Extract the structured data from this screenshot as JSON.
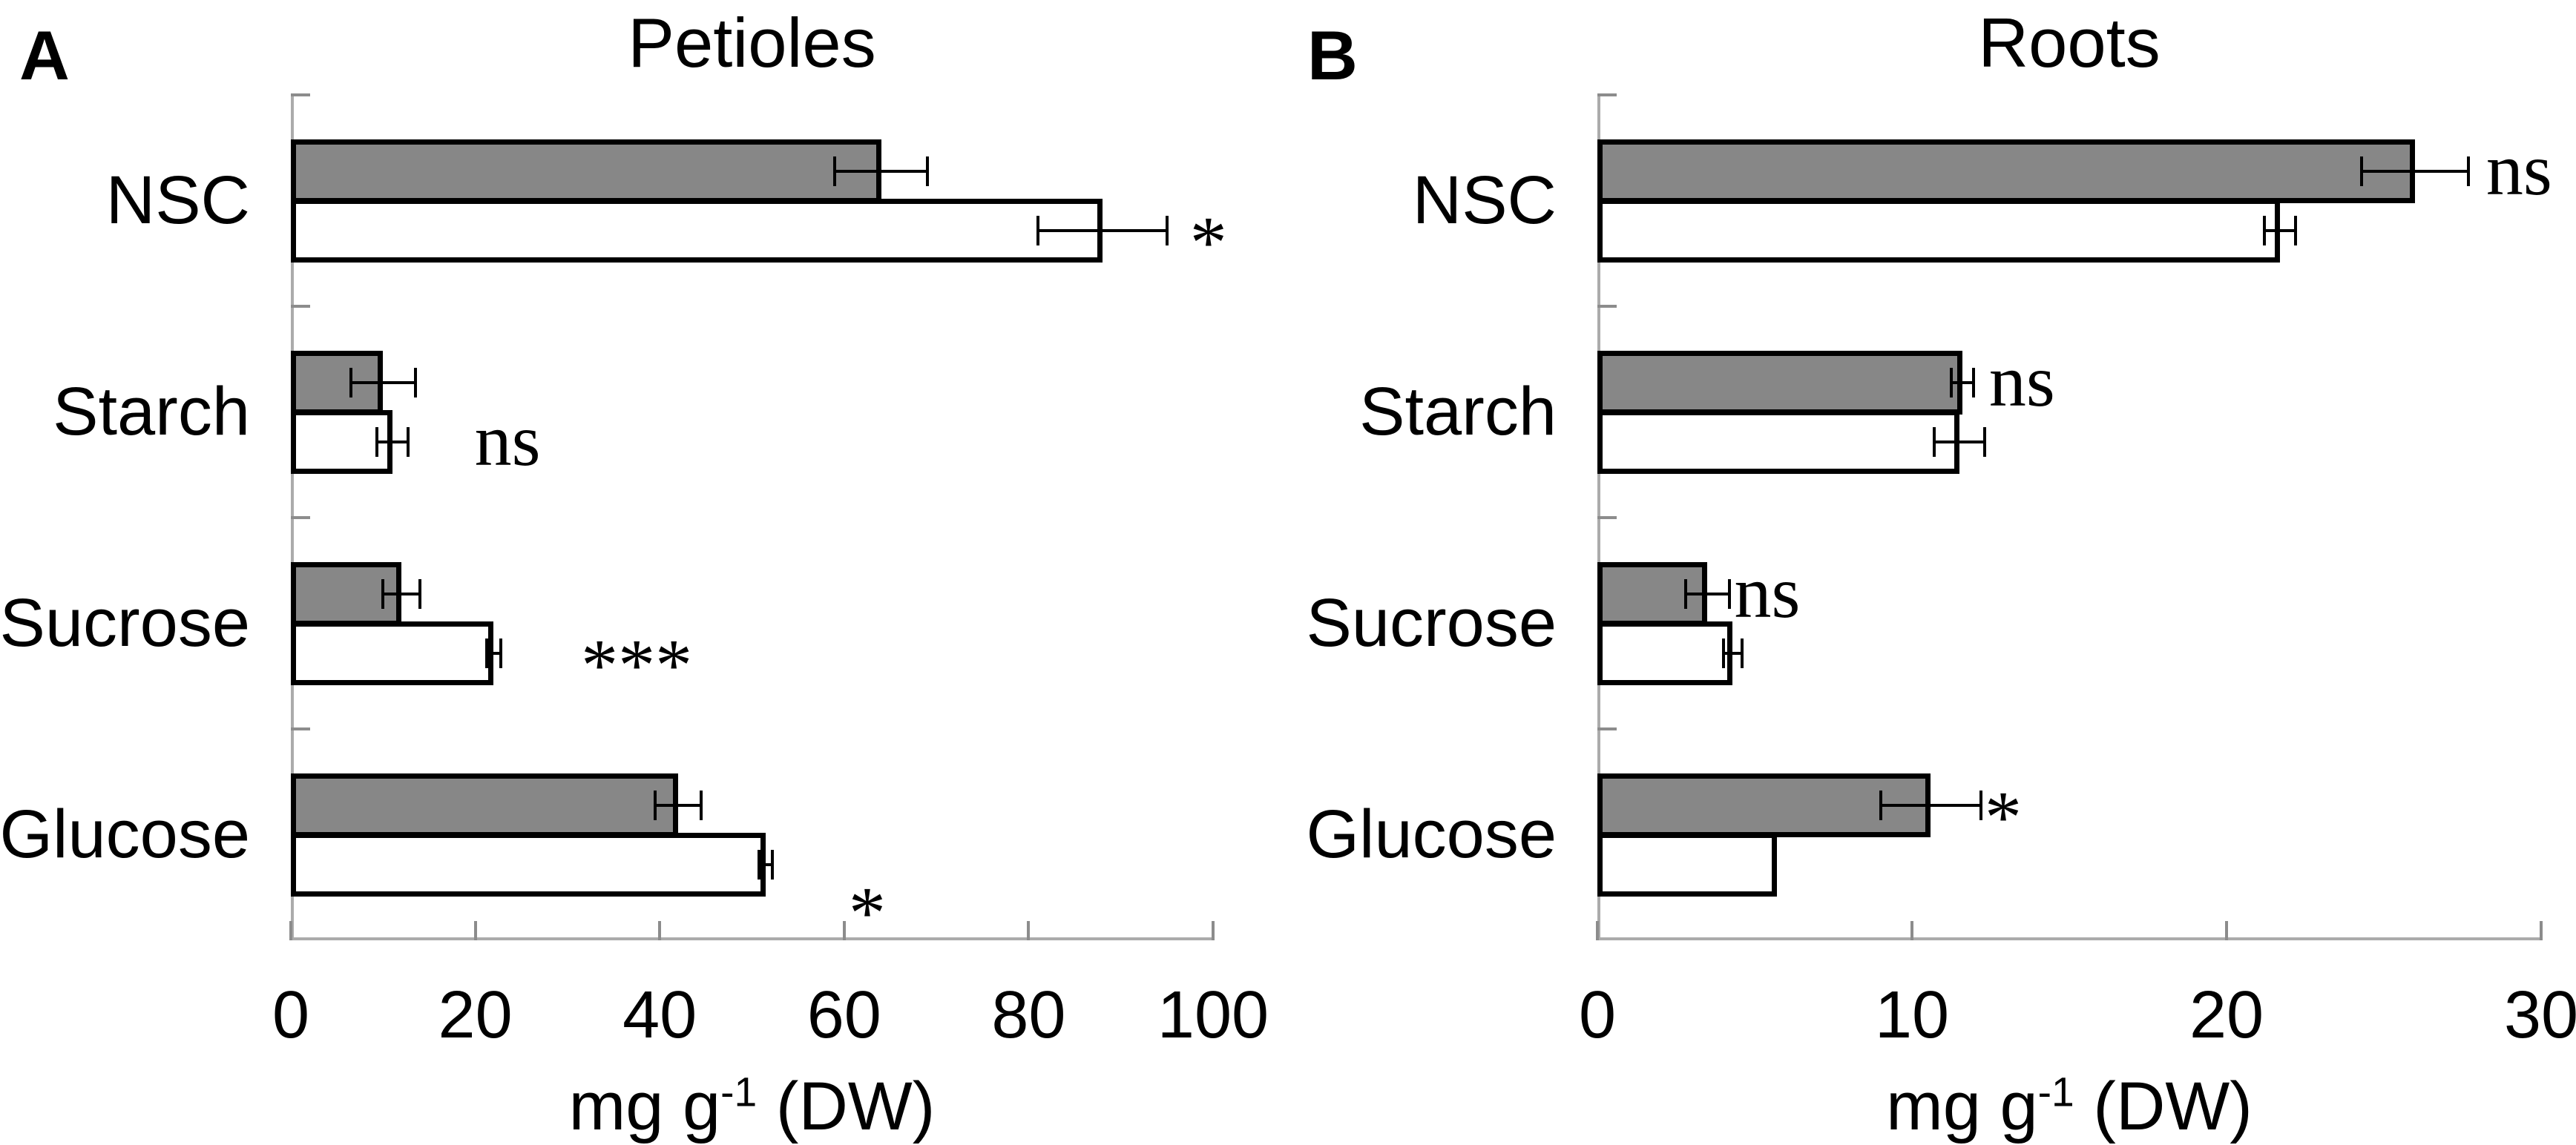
{
  "figure_title": "",
  "chart_data": [
    {
      "type": "bar",
      "orientation": "horizontal",
      "panel_label": "A",
      "title": "Petioles",
      "categories": [
        "NSC",
        "Starch",
        "Sucrose",
        "Glucose"
      ],
      "xlim": [
        0,
        100
      ],
      "xticks": [
        0,
        20,
        40,
        60,
        80,
        100
      ],
      "xlabel": {
        "base": "mg g",
        "sup": "-1",
        "rest": " (DW)"
      },
      "bar_colors": {
        "gray": "#878787",
        "white": "#ffffff"
      },
      "series": [
        {
          "name": "gray-bars",
          "fill": "gray",
          "values": [
            64,
            10,
            12,
            42
          ],
          "errors": [
            5,
            3.5,
            2,
            2.5
          ]
        },
        {
          "name": "white-bars",
          "fill": "white",
          "values": [
            88,
            11,
            22,
            51.5
          ],
          "errors": [
            7,
            1.7,
            0.8,
            0.7
          ]
        }
      ],
      "annotations": [
        {
          "category": "NSC",
          "text": "*",
          "x": 99.5,
          "series": 1,
          "valign": "center"
        },
        {
          "category": "Starch",
          "text": "ns",
          "x": 23.5,
          "series": 1,
          "valign": "center"
        },
        {
          "category": "Sucrose",
          "text": "***",
          "x": 37.5,
          "series": 1,
          "valign": "center"
        },
        {
          "category": "Glucose",
          "text": "*",
          "x": 62.5,
          "series": 1,
          "valign": "low"
        }
      ],
      "grid": false,
      "legend": false
    },
    {
      "type": "bar",
      "orientation": "horizontal",
      "panel_label": "B",
      "title": "Roots",
      "categories": [
        "NSC",
        "Starch",
        "Sucrose",
        "Glucose"
      ],
      "xlim": [
        0,
        30
      ],
      "xticks": [
        0,
        10,
        20,
        30
      ],
      "xlabel": {
        "base": "mg g",
        "sup": "-1",
        "rest": " (DW)"
      },
      "bar_colors": {
        "gray": "#878787",
        "white": "#ffffff"
      },
      "series": [
        {
          "name": "gray-bars",
          "fill": "gray",
          "values": [
            26,
            11.6,
            3.5,
            10.6
          ],
          "errors": [
            1.7,
            0.35,
            0.7,
            1.6
          ]
        },
        {
          "name": "white-bars",
          "fill": "white",
          "values": [
            21.7,
            11.5,
            4.3,
            5.7
          ],
          "errors": [
            0.5,
            0.8,
            0.3,
            0
          ]
        }
      ],
      "annotations": [
        {
          "category": "NSC",
          "text": "ns",
          "x": 29.3,
          "series": 0,
          "valign": "center"
        },
        {
          "category": "Starch",
          "text": "ns",
          "x": 13.5,
          "series": 0,
          "valign": "center"
        },
        {
          "category": "Sucrose",
          "text": "ns",
          "x": 5.4,
          "series": 0,
          "valign": "center"
        },
        {
          "category": "Glucose",
          "text": "*",
          "x": 12.9,
          "series": 0,
          "valign": "center"
        }
      ],
      "grid": false,
      "legend": false
    }
  ]
}
